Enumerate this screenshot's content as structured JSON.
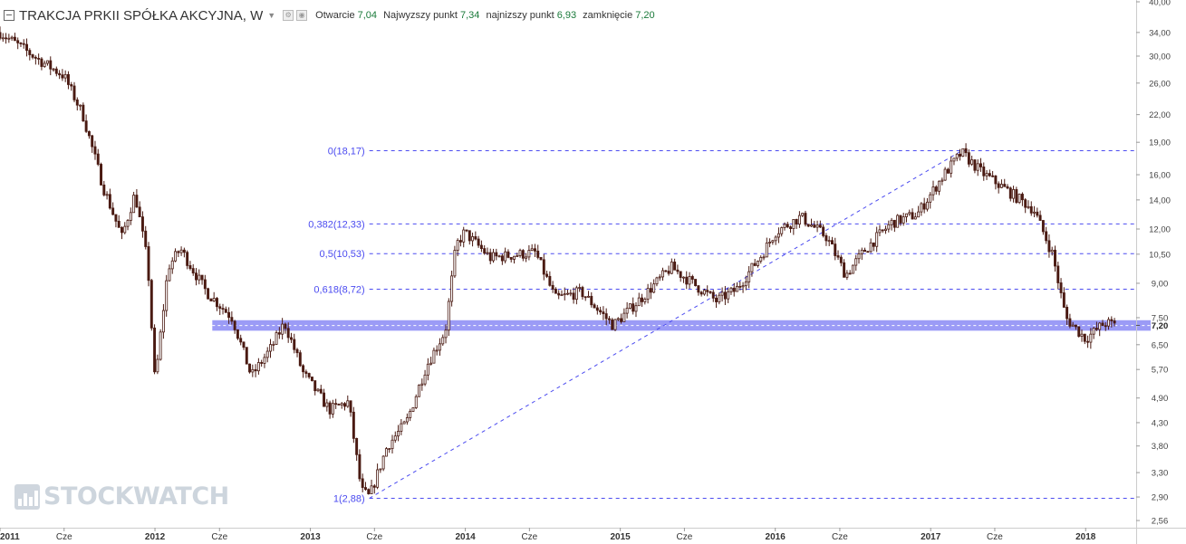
{
  "header": {
    "symbol": "TRAKCJA PRKII SPÓŁKA AKCYJNA, W",
    "open_label": "Otwarcie",
    "open": "7,04",
    "high_label": "Najwyzszy punkt",
    "high": "7,34",
    "low_label": "najnizszy punkt",
    "low": "6,93",
    "close_label": "zamknięcie",
    "close": "7,20"
  },
  "watermark": "STOCKWATCH",
  "colors": {
    "candle_up": "#ffffff",
    "candle_down": "#4a1a12",
    "candle_wick": "#4a1a12",
    "fib": "#4b4bf0",
    "zone": "#8a8af5",
    "grid": "#e6e6e6"
  },
  "chart_data": {
    "type": "candlestick",
    "title": "",
    "xlabel": "",
    "ylabel": "",
    "y_scale": "log",
    "ylim": [
      2.5,
      40
    ],
    "xlim": [
      "2011-01-01",
      "2018-04-30"
    ],
    "y_ticks": [
      "40,00",
      "34,00",
      "30,00",
      "26,00",
      "22,00",
      "19,00",
      "16,00",
      "14,00",
      "12,00",
      "10,50",
      "9,00",
      "7,50",
      "7,20",
      "6,50",
      "5,70",
      "4,90",
      "4,30",
      "3,80",
      "3,30",
      "2,90",
      "2,56"
    ],
    "x_ticks": [
      {
        "date": "2011-01-01",
        "label": "2011"
      },
      {
        "date": "2011-06-01",
        "label": "Cze"
      },
      {
        "date": "2012-01-01",
        "label": "2012"
      },
      {
        "date": "2012-06-01",
        "label": "Cze"
      },
      {
        "date": "2013-01-01",
        "label": "2013"
      },
      {
        "date": "2013-06-01",
        "label": "Cze"
      },
      {
        "date": "2014-01-01",
        "label": "2014"
      },
      {
        "date": "2014-06-01",
        "label": "Cze"
      },
      {
        "date": "2015-01-01",
        "label": "2015"
      },
      {
        "date": "2015-06-01",
        "label": "Cze"
      },
      {
        "date": "2016-01-01",
        "label": "2016"
      },
      {
        "date": "2016-06-01",
        "label": "Cze"
      },
      {
        "date": "2017-01-01",
        "label": "2017"
      },
      {
        "date": "2017-06-01",
        "label": "Cze"
      },
      {
        "date": "2018-01-01",
        "label": "2018"
      }
    ],
    "series": [
      {
        "date": "2011-01-01",
        "close": 34.0
      },
      {
        "date": "2011-04-01",
        "close": 29.5
      },
      {
        "date": "2011-06-01",
        "close": 27.0
      },
      {
        "date": "2011-07-15",
        "close": 22.0
      },
      {
        "date": "2011-09-01",
        "close": 15.0
      },
      {
        "date": "2011-10-15",
        "close": 11.5
      },
      {
        "date": "2011-11-15",
        "close": 14.5
      },
      {
        "date": "2011-12-15",
        "close": 10.0
      },
      {
        "date": "2012-01-01",
        "close": 5.3
      },
      {
        "date": "2012-02-01",
        "close": 9.8
      },
      {
        "date": "2012-03-01",
        "close": 10.8
      },
      {
        "date": "2012-05-01",
        "close": 8.6
      },
      {
        "date": "2012-07-01",
        "close": 7.5
      },
      {
        "date": "2012-08-15",
        "close": 5.5
      },
      {
        "date": "2012-10-01",
        "close": 6.4
      },
      {
        "date": "2012-11-01",
        "close": 7.3
      },
      {
        "date": "2012-12-15",
        "close": 5.6
      },
      {
        "date": "2013-02-15",
        "close": 4.6
      },
      {
        "date": "2013-04-01",
        "close": 4.8
      },
      {
        "date": "2013-05-01",
        "close": 3.0
      },
      {
        "date": "2013-05-20",
        "close": 2.9
      },
      {
        "date": "2013-07-01",
        "close": 3.8
      },
      {
        "date": "2013-08-15",
        "close": 4.3
      },
      {
        "date": "2013-10-01",
        "close": 5.8
      },
      {
        "date": "2013-11-15",
        "close": 7.0
      },
      {
        "date": "2013-12-10",
        "close": 11.0
      },
      {
        "date": "2013-12-30",
        "close": 11.8
      },
      {
        "date": "2014-03-01",
        "close": 10.3
      },
      {
        "date": "2014-06-15",
        "close": 10.6
      },
      {
        "date": "2014-08-01",
        "close": 8.3
      },
      {
        "date": "2014-10-01",
        "close": 8.6
      },
      {
        "date": "2014-12-15",
        "close": 7.2
      },
      {
        "date": "2015-03-01",
        "close": 8.5
      },
      {
        "date": "2015-05-01",
        "close": 9.8
      },
      {
        "date": "2015-08-15",
        "close": 8.2
      },
      {
        "date": "2015-10-01",
        "close": 8.7
      },
      {
        "date": "2015-12-01",
        "close": 10.5
      },
      {
        "date": "2016-01-01",
        "close": 11.8
      },
      {
        "date": "2016-03-01",
        "close": 12.8
      },
      {
        "date": "2016-05-01",
        "close": 11.5
      },
      {
        "date": "2016-06-15",
        "close": 9.4
      },
      {
        "date": "2016-08-01",
        "close": 10.8
      },
      {
        "date": "2016-10-01",
        "close": 12.4
      },
      {
        "date": "2016-12-01",
        "close": 13.0
      },
      {
        "date": "2017-02-01",
        "close": 16.0
      },
      {
        "date": "2017-03-15",
        "close": 18.0
      },
      {
        "date": "2017-05-01",
        "close": 16.2
      },
      {
        "date": "2017-07-01",
        "close": 14.7
      },
      {
        "date": "2017-09-01",
        "close": 13.3
      },
      {
        "date": "2017-10-15",
        "close": 10.5
      },
      {
        "date": "2017-11-15",
        "close": 7.5
      },
      {
        "date": "2018-01-01",
        "close": 6.7
      },
      {
        "date": "2018-02-15",
        "close": 7.3
      },
      {
        "date": "2018-03-15",
        "close": 7.2
      }
    ],
    "fibonacci": {
      "levels": [
        {
          "label": "0(18,17)",
          "value": 18.17
        },
        {
          "label": "0,382(12,33)",
          "value": 12.33
        },
        {
          "label": "0,5(10,53)",
          "value": 10.53
        },
        {
          "label": "0,618(8,72)",
          "value": 8.72
        },
        {
          "label": "1(2,88)",
          "value": 2.88
        }
      ],
      "trend_line": [
        {
          "date": "2013-05-20",
          "value": 2.88
        },
        {
          "date": "2017-03-15",
          "value": 18.17
        }
      ]
    },
    "support_zone": {
      "low": 7.0,
      "high": 7.4,
      "from": "2012-05-15"
    },
    "last_price_label": "7,20"
  }
}
